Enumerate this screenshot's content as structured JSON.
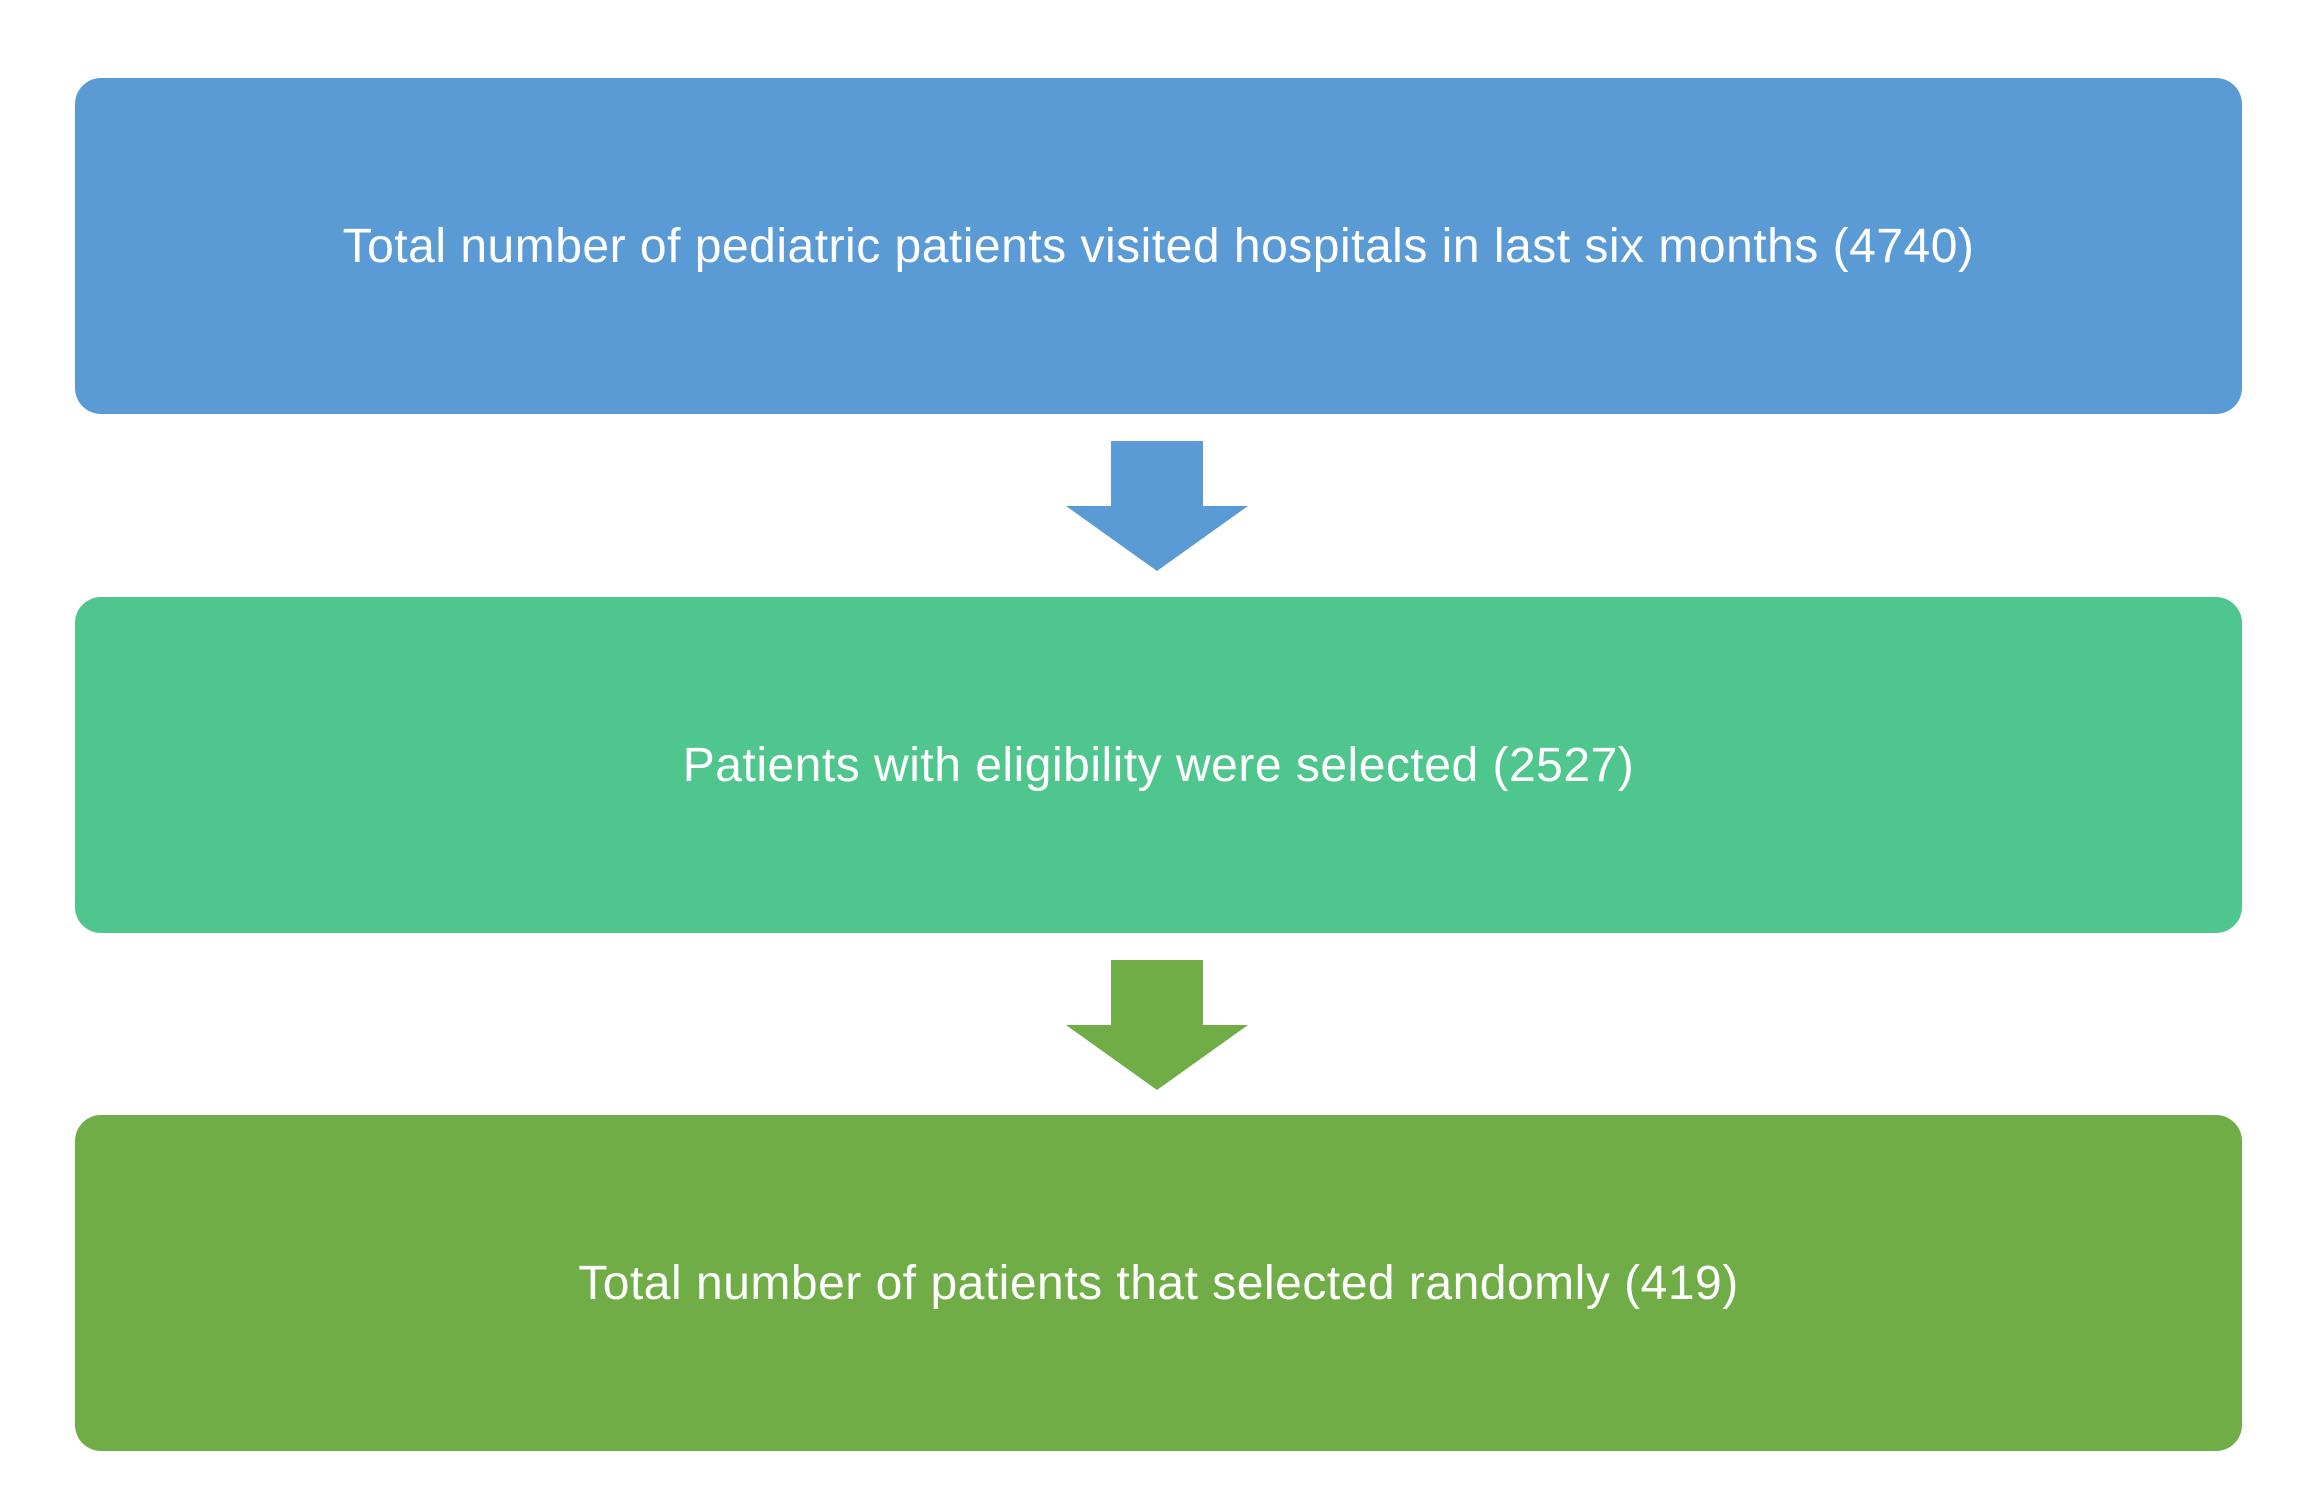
{
  "flowchart": {
    "steps": [
      {
        "label": "Total number of pediatric patients visited hospitals in last six months (4740)",
        "color": "#5b9bd5"
      },
      {
        "label": "Patients with eligibility were selected (2527)",
        "color": "#4fc68e"
      },
      {
        "label": "Total number of patients that selected randomly (419)",
        "color": "#70ad47"
      }
    ],
    "arrows": [
      {
        "icon": "arrow-down-icon",
        "color": "#5b9bd5"
      },
      {
        "icon": "arrow-down-icon",
        "color": "#70ad47"
      }
    ]
  }
}
